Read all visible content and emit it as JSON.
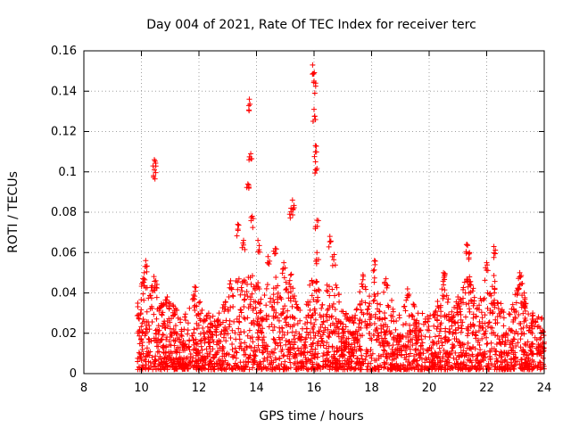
{
  "chart_data": {
    "type": "scatter",
    "title": "Day 004 of 2021, Rate Of TEC Index for receiver terc",
    "xlabel": "GPS time / hours",
    "ylabel": "ROTI / TECUs",
    "xlim": [
      8,
      24
    ],
    "ylim": [
      0,
      0.16
    ],
    "xticks": [
      8,
      10,
      12,
      14,
      16,
      18,
      20,
      22,
      24
    ],
    "yticks": [
      0,
      0.02,
      0.04,
      0.06,
      0.08,
      0.1,
      0.12,
      0.14,
      0.16
    ],
    "xtick_labels": [
      "8",
      "10",
      "12",
      "14",
      "16",
      "18",
      "20",
      "22",
      "24"
    ],
    "ytick_labels": [
      "0",
      "0.02",
      "0.04",
      "0.06",
      "0.08",
      "0.1",
      "0.12",
      "0.14",
      "0.16"
    ],
    "grid": true,
    "marker": "+",
    "color": "#ff0000",
    "data_start_hour": 9.85,
    "data_end_hour": 24,
    "baseline_range": [
      0.002,
      0.03
    ],
    "peaks": [
      {
        "x": 10.15,
        "y": 0.056
      },
      {
        "x": 10.1,
        "y": 0.05
      },
      {
        "x": 10.45,
        "y": 0.106
      },
      {
        "x": 10.45,
        "y": 0.101
      },
      {
        "x": 10.5,
        "y": 0.046
      },
      {
        "x": 10.9,
        "y": 0.038
      },
      {
        "x": 11.1,
        "y": 0.034
      },
      {
        "x": 11.85,
        "y": 0.043
      },
      {
        "x": 12.7,
        "y": 0.03
      },
      {
        "x": 13.1,
        "y": 0.046
      },
      {
        "x": 13.35,
        "y": 0.074
      },
      {
        "x": 13.55,
        "y": 0.066
      },
      {
        "x": 13.7,
        "y": 0.094
      },
      {
        "x": 13.75,
        "y": 0.136
      },
      {
        "x": 13.8,
        "y": 0.109
      },
      {
        "x": 13.85,
        "y": 0.078
      },
      {
        "x": 14.05,
        "y": 0.066
      },
      {
        "x": 14.4,
        "y": 0.058
      },
      {
        "x": 14.65,
        "y": 0.062
      },
      {
        "x": 14.95,
        "y": 0.055
      },
      {
        "x": 15.2,
        "y": 0.082
      },
      {
        "x": 15.25,
        "y": 0.086
      },
      {
        "x": 15.95,
        "y": 0.153
      },
      {
        "x": 16.0,
        "y": 0.145
      },
      {
        "x": 16.0,
        "y": 0.131
      },
      {
        "x": 16.05,
        "y": 0.113
      },
      {
        "x": 16.05,
        "y": 0.105
      },
      {
        "x": 16.1,
        "y": 0.076
      },
      {
        "x": 16.1,
        "y": 0.06
      },
      {
        "x": 16.55,
        "y": 0.068
      },
      {
        "x": 16.7,
        "y": 0.059
      },
      {
        "x": 17.7,
        "y": 0.049
      },
      {
        "x": 18.1,
        "y": 0.056
      },
      {
        "x": 18.5,
        "y": 0.047
      },
      {
        "x": 19.25,
        "y": 0.042
      },
      {
        "x": 20.5,
        "y": 0.05
      },
      {
        "x": 20.5,
        "y": 0.044
      },
      {
        "x": 21.0,
        "y": 0.038
      },
      {
        "x": 21.3,
        "y": 0.064
      },
      {
        "x": 21.4,
        "y": 0.06
      },
      {
        "x": 22.25,
        "y": 0.063
      },
      {
        "x": 22.0,
        "y": 0.055
      },
      {
        "x": 23.15,
        "y": 0.05
      },
      {
        "x": 23.15,
        "y": 0.044
      },
      {
        "x": 23.6,
        "y": 0.03
      }
    ]
  }
}
